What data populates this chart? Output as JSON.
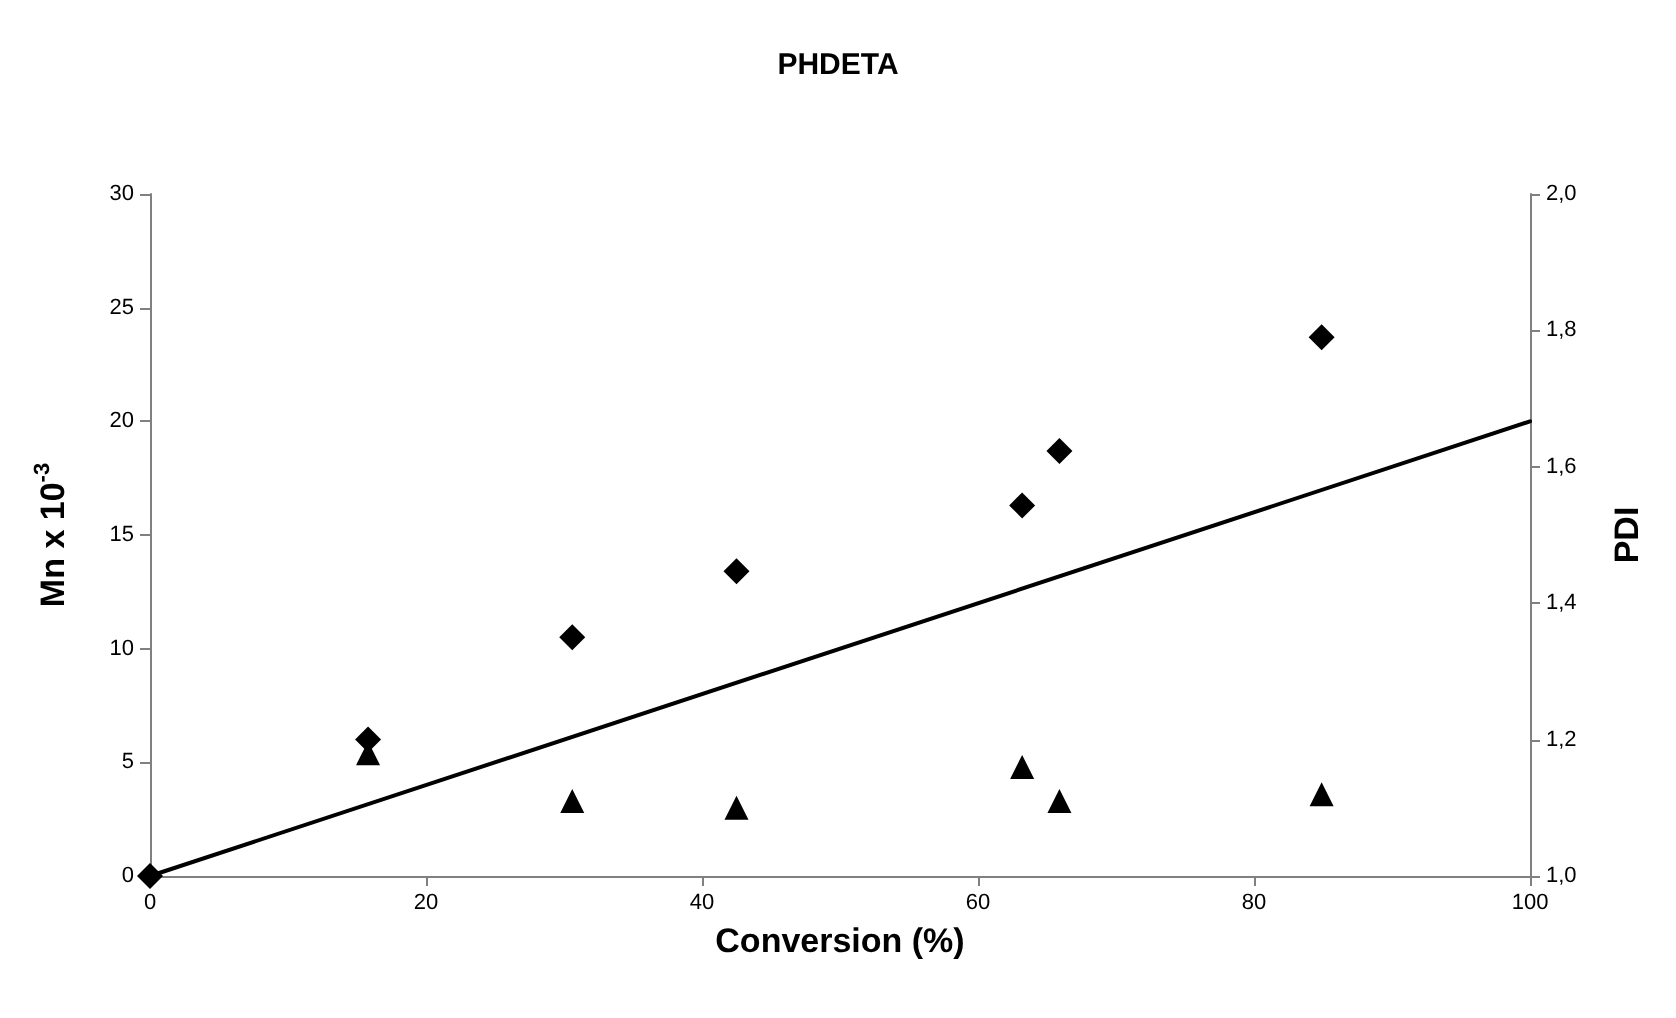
{
  "chart_data": {
    "type": "scatter",
    "title": "PHDETA",
    "xlabel": "Conversion (%)",
    "ylabel": "Mn x 10$^{-3}$",
    "y2label": "PDI",
    "xlim": [
      0,
      100
    ],
    "xticks": [
      0,
      20,
      40,
      60,
      80,
      100
    ],
    "ylim": [
      0,
      30
    ],
    "yticks": [
      0,
      5,
      10,
      15,
      20,
      25,
      30
    ],
    "y2lim": [
      1,
      2
    ],
    "y2ticks": [
      {
        "value": 1,
        "label": "1,0"
      },
      {
        "value": 1.2,
        "label": "1,2"
      },
      {
        "value": 1.4,
        "label": "1,4"
      },
      {
        "value": 1.6,
        "label": "1,6"
      },
      {
        "value": 1.8,
        "label": "1,8"
      },
      {
        "value": 2,
        "label": "2,0"
      }
    ],
    "grid": false,
    "series": [
      {
        "marker": "diamond",
        "color": "#000000",
        "x": [
          0,
          15.8,
          30.6,
          42.5,
          63.2,
          65.9,
          84.9
        ],
        "values": [
          0,
          6.0,
          10.5,
          13.4,
          16.3,
          18.7,
          23.7
        ]
      },
      {
        "marker": "triangle",
        "color": "#000000",
        "axis": "y2",
        "x": [
          15.8,
          30.6,
          42.5,
          63.2,
          65.9,
          84.9
        ],
        "values": [
          1.18,
          1.11,
          1.1,
          1.16,
          1.11,
          1.12
        ]
      },
      {
        "type": "line",
        "marker": "none",
        "line_style": "solid",
        "color": "#000000",
        "x": [
          0,
          100
        ],
        "values": [
          0,
          20
        ]
      }
    ]
  }
}
